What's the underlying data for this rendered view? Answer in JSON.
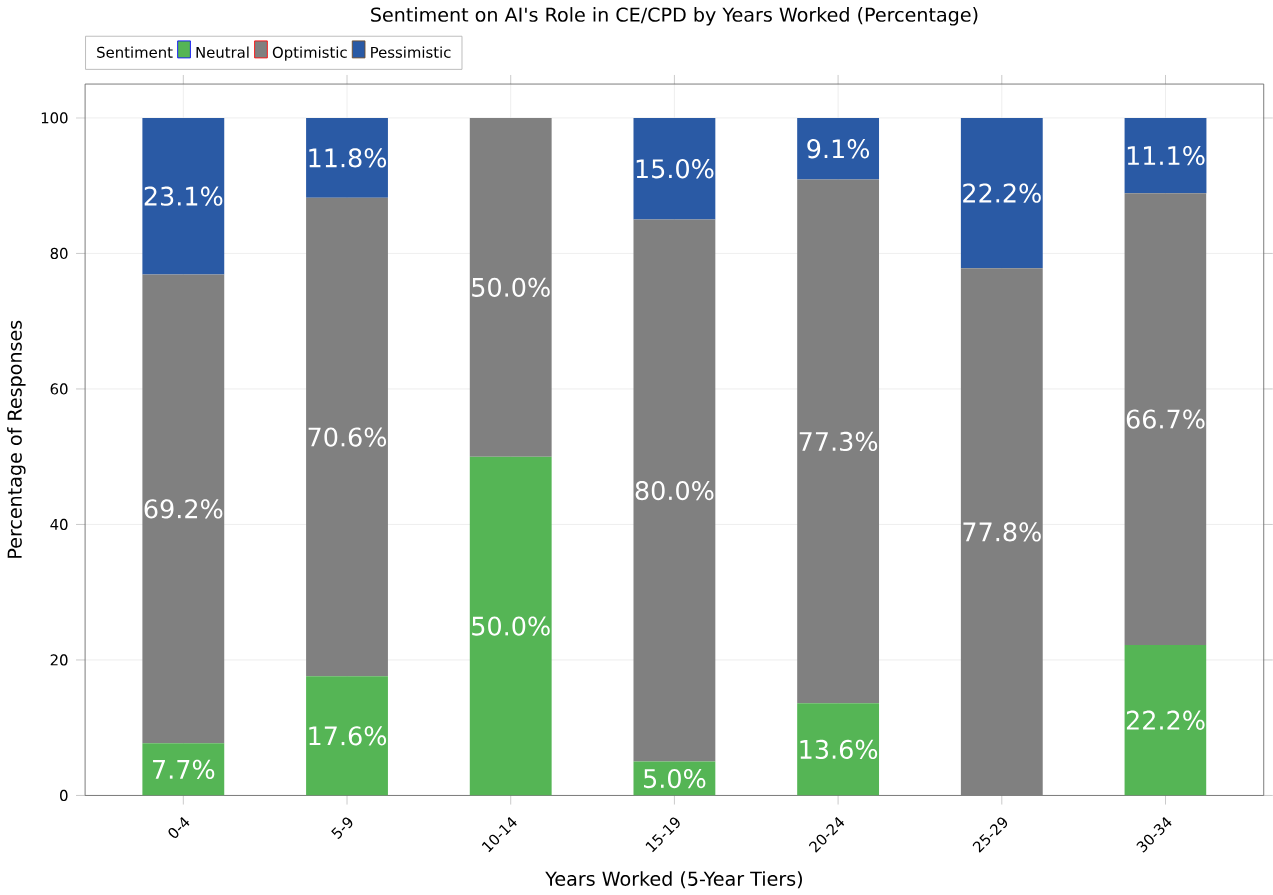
{
  "chart_data": {
    "type": "bar",
    "stacked": true,
    "title": "Sentiment on AI's Role in CE/CPD by Years Worked (Percentage)",
    "xlabel": "Years Worked (5-Year Tiers)",
    "ylabel": "Percentage of Responses",
    "legend_title": "Sentiment",
    "categories": [
      "0-4",
      "5-9",
      "10-14",
      "15-19",
      "20-24",
      "25-29",
      "30-34"
    ],
    "series": [
      {
        "name": "Neutral",
        "color": "#55b555",
        "values": [
          7.7,
          17.6,
          50.0,
          5.0,
          13.6,
          0,
          22.2
        ],
        "value_labels": [
          "7.7%",
          "17.6%",
          "50.0%",
          "5.0%",
          "13.6%",
          null,
          "22.2%"
        ]
      },
      {
        "name": "Optimistic",
        "color": "#808080",
        "values": [
          69.2,
          70.6,
          50.0,
          80.0,
          77.3,
          77.8,
          66.7
        ],
        "value_labels": [
          "69.2%",
          "70.6%",
          "50.0%",
          "80.0%",
          "77.3%",
          "77.8%",
          "66.7%"
        ]
      },
      {
        "name": "Pessimistic",
        "color": "#2a5aa5",
        "values": [
          23.1,
          11.8,
          0,
          15.0,
          9.1,
          22.2,
          11.1
        ],
        "value_labels": [
          "23.1%",
          "11.8%",
          null,
          "15.0%",
          "9.1%",
          "22.2%",
          "11.1%"
        ]
      }
    ],
    "ylim": [
      0,
      105
    ],
    "yticks": [
      0,
      20,
      40,
      60,
      80,
      100
    ],
    "grid": true,
    "legend": "top left"
  }
}
